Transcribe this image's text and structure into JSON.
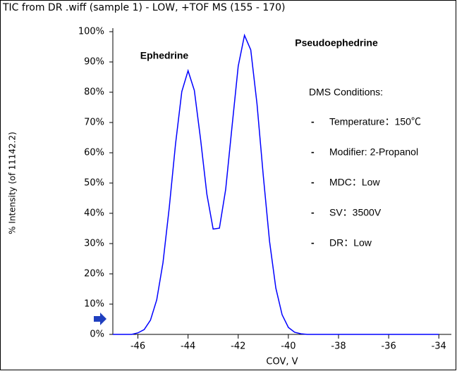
{
  "chart_data": {
    "type": "line",
    "title": "TIC from DR .wiff (sample 1) - LOW, +TOF MS (155 - 170)",
    "x_label": "COV, V",
    "y_label": "% Intensity (of 11142.2)",
    "x": [
      -47,
      -46.25,
      -46.0,
      -45.75,
      -45.5,
      -45.25,
      -45.0,
      -44.75,
      -44.5,
      -44.25,
      -44.0,
      -43.75,
      -43.5,
      -43.25,
      -43.0,
      -42.75,
      -42.5,
      -42.25,
      -42.0,
      -41.75,
      -41.5,
      -41.25,
      -41.0,
      -40.75,
      -40.5,
      -40.25,
      -40.0,
      -39.75,
      -39.5,
      -39.25,
      -34
    ],
    "series": [
      {
        "color": "#0000ff",
        "values": [
          0,
          0,
          0.5,
          1.6,
          4.7,
          11.4,
          23.7,
          41.9,
          62.9,
          80.2,
          87.1,
          80.6,
          64.4,
          46.3,
          34.8,
          35.1,
          47.9,
          68.4,
          88.6,
          98.8,
          94.0,
          76.1,
          52.4,
          30.7,
          15.3,
          6.5,
          2.3,
          0.7,
          0.2,
          0,
          0
        ]
      }
    ],
    "xlim": [
      -47,
      -33.5
    ],
    "ylim": [
      0,
      100
    ],
    "xticks": [
      -46,
      -44,
      -42,
      -40,
      -38,
      -36,
      -34
    ],
    "yticks": [
      {
        "value": 0,
        "label": "0%"
      },
      {
        "value": 10,
        "label": "10%"
      },
      {
        "value": 20,
        "label": "20%"
      },
      {
        "value": 30,
        "label": "30%"
      },
      {
        "value": 40,
        "label": "40%"
      },
      {
        "value": 50,
        "label": "50%"
      },
      {
        "value": 60,
        "label": "60%"
      },
      {
        "value": 70,
        "label": "70%"
      },
      {
        "value": 80,
        "label": "80%"
      },
      {
        "value": 90,
        "label": "90%"
      },
      {
        "value": 100,
        "label": "100%"
      }
    ],
    "annotations": {
      "peak1": "Ephedrine",
      "peak2": "Pseudoephedrine",
      "conditions_title": "DMS Conditions:",
      "bullet": "-",
      "conditions": [
        "Temperature：150℃",
        "Modifier: 2-Propanol",
        "MDC：Low",
        "SV：3500V",
        "DR：Low"
      ]
    }
  }
}
